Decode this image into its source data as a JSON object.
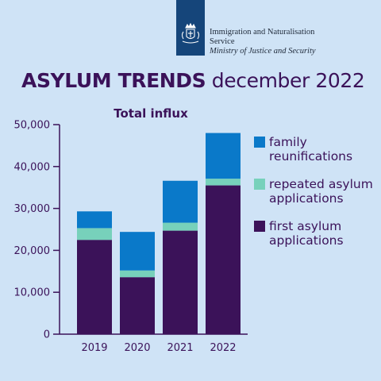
{
  "header": {
    "org_name_line1": "Immigration and Naturalisation",
    "org_name_line2": "Service",
    "ministry": "Ministry of Justice and Security"
  },
  "title": {
    "bold": "ASYLUM TRENDS",
    "rest": " december 2022"
  },
  "colors": {
    "background": "#cfe3f6",
    "family_reunifications": "#0a79c9",
    "repeated_asylum_applications": "#77d1bb",
    "first_asylum_applications": "#3b1259",
    "logo_background": "#15457a"
  },
  "icons": [
    "coat-of-arms-icon"
  ],
  "chart_data": {
    "type": "bar",
    "stacked": true,
    "title": "Total influx",
    "categories": [
      "2019",
      "2020",
      "2021",
      "2022"
    ],
    "yticks": [
      "0",
      "10,000",
      "20,000",
      "30,000",
      "40,000",
      "50,000"
    ],
    "ylim": [
      0,
      50000
    ],
    "grid": false,
    "legend_position": "right",
    "series": [
      {
        "name": "first asylum applications",
        "legend_lines": [
          "first asylum",
          "applications"
        ],
        "values": [
          22500,
          13600,
          24700,
          35500
        ]
      },
      {
        "name": "repeated asylum applications",
        "legend_lines": [
          "repeated asylum",
          "applications"
        ],
        "values": [
          2800,
          1600,
          1900,
          1600
        ]
      },
      {
        "name": "family reunifications",
        "legend_lines": [
          "family",
          "reunifications"
        ],
        "values": [
          4000,
          9200,
          10000,
          10900
        ]
      }
    ]
  }
}
